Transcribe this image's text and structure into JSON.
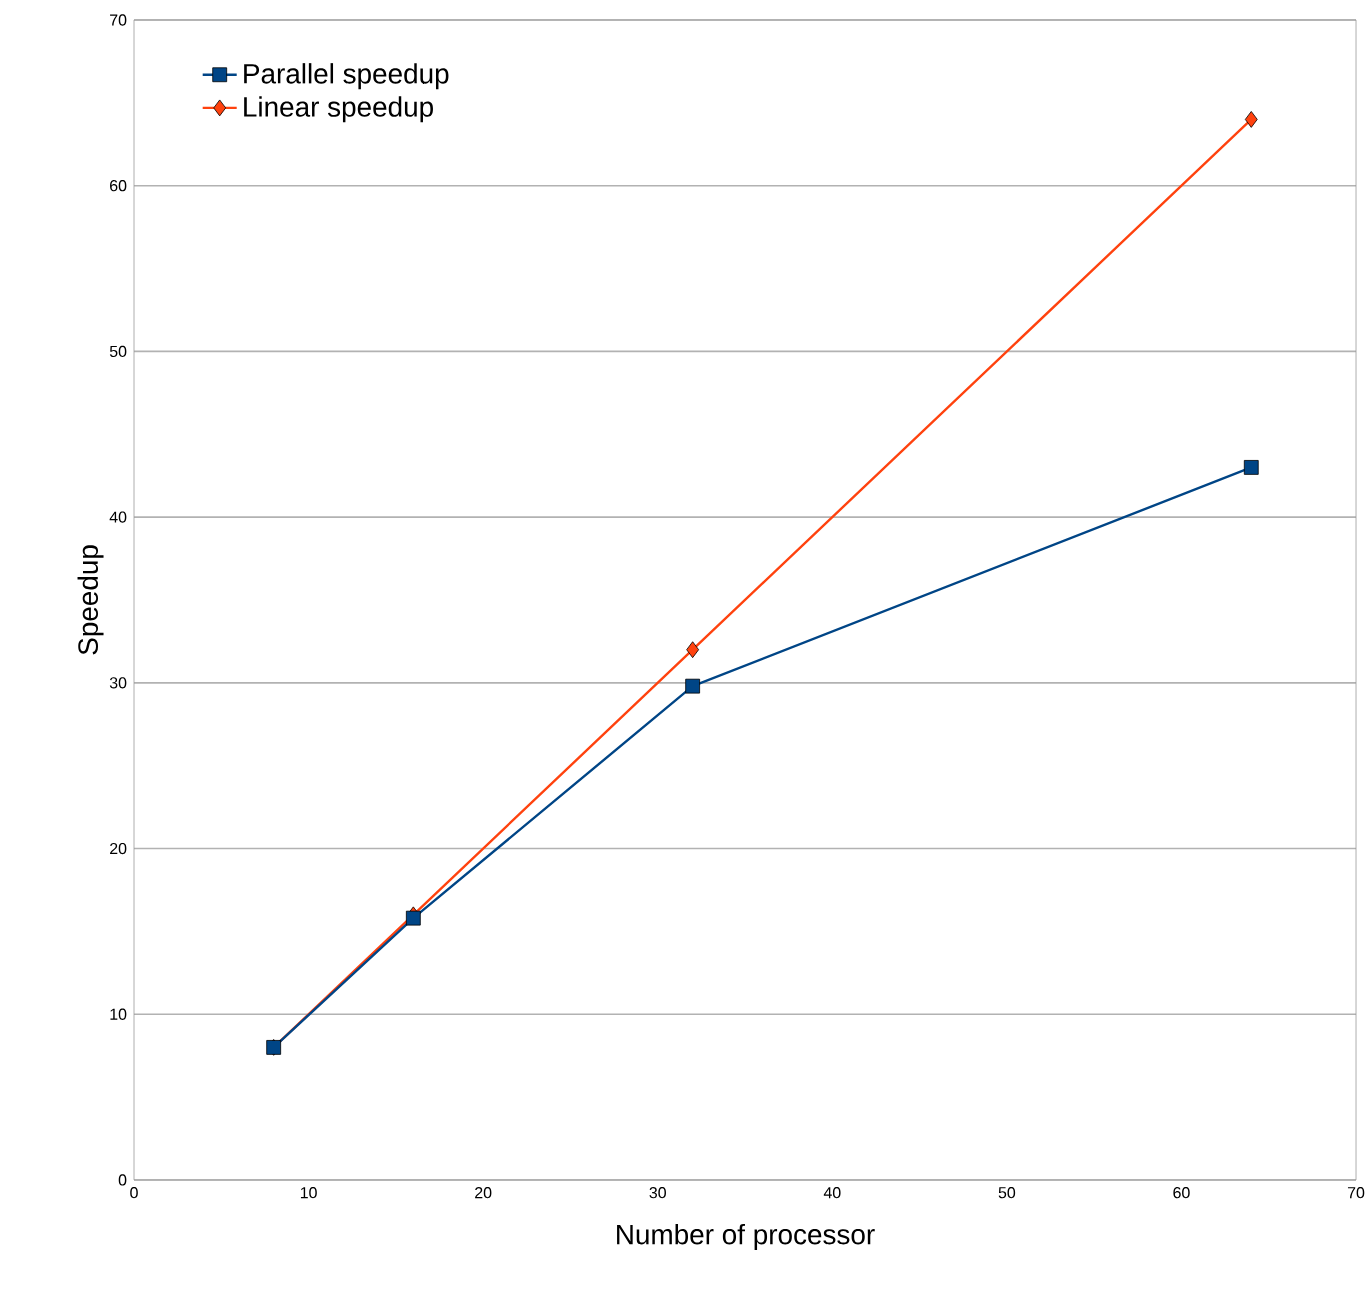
{
  "chart_data": {
    "type": "line",
    "xlabel": "Number of processor",
    "ylabel": "Speedup",
    "xlim": [
      0,
      70
    ],
    "ylim": [
      0,
      70
    ],
    "xticks": [
      0,
      10,
      20,
      30,
      40,
      50,
      60,
      70
    ],
    "yticks": [
      0,
      10,
      20,
      30,
      40,
      50,
      60,
      70
    ],
    "grid": "y",
    "legend": "top left",
    "series": [
      {
        "name": "Parallel speedup",
        "color": "#004586",
        "marker": "square",
        "x": [
          8,
          16,
          32,
          64
        ],
        "values": [
          8,
          15.8,
          29.8,
          43.0
        ]
      },
      {
        "name": "Linear speedup",
        "color": "#ff420e",
        "marker": "diamond",
        "x": [
          8,
          16,
          32,
          64
        ],
        "values": [
          8,
          16,
          32,
          64
        ]
      }
    ]
  }
}
